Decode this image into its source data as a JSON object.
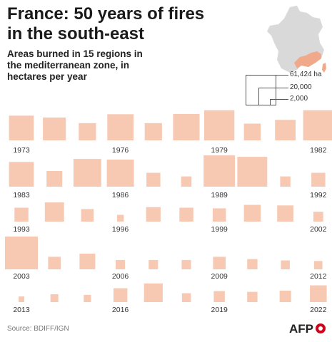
{
  "title": "France: 50 years of fires in the south-east",
  "subtitle": "Areas burned in 15 regions in the mediterranean zone, in hectares per year",
  "source": "Source: BDIFF/IGN",
  "logo_text": "AFP",
  "legend": {
    "items": [
      {
        "label": "61,424 ha",
        "value": 61424
      },
      {
        "label": "20,000",
        "value": 20000
      },
      {
        "label": "2,000",
        "value": 2000
      }
    ]
  },
  "colors": {
    "square_fill": "#f7c9b3",
    "map_fill": "#d9d9d9",
    "map_highlight": "#f0a98a",
    "logo_red": "#d0021b"
  },
  "chart_data": {
    "type": "proportional-squares",
    "unit": "hectares per year",
    "max_value": 61424,
    "years": [
      1973,
      1974,
      1975,
      1976,
      1977,
      1978,
      1979,
      1980,
      1981,
      1982,
      1983,
      1984,
      1985,
      1986,
      1987,
      1988,
      1989,
      1990,
      1991,
      1992,
      1993,
      1994,
      1995,
      1996,
      1997,
      1998,
      1999,
      2000,
      2001,
      2002,
      2003,
      2004,
      2005,
      2006,
      2007,
      2008,
      2009,
      2010,
      2011,
      2012,
      2013,
      2014,
      2015,
      2016,
      2017,
      2018,
      2019,
      2020,
      2021,
      2022
    ],
    "values": [
      35000,
      30000,
      17000,
      39000,
      17000,
      40000,
      52000,
      16000,
      24000,
      52000,
      35000,
      14000,
      44000,
      42000,
      11000,
      6000,
      56000,
      51000,
      6000,
      11000,
      11000,
      21000,
      9000,
      2600,
      12000,
      11000,
      10000,
      16000,
      15000,
      5500,
      61424,
      9000,
      14000,
      5000,
      5000,
      5000,
      9000,
      6000,
      4500,
      4000,
      1800,
      3500,
      3000,
      11000,
      20000,
      4500,
      7000,
      6000,
      7500,
      16000
    ],
    "labeled_years": [
      "1973",
      "1976",
      "1979",
      "1982",
      "1983",
      "1986",
      "1989",
      "1992",
      "1993",
      "1996",
      "1999",
      "2002",
      "2003",
      "2006",
      "2009",
      "2012",
      "2013",
      "2016",
      "2019",
      "2022"
    ]
  }
}
